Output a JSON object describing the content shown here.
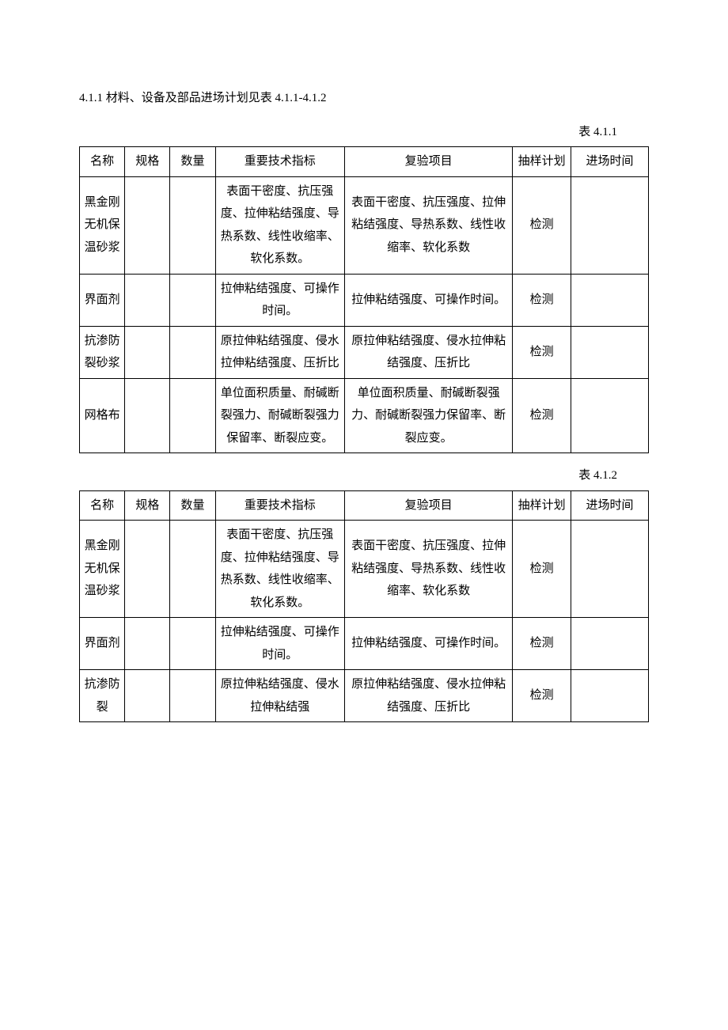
{
  "intro": "4.1.1 材料、设备及部品进场计划见表 4.1.1-4.1.2",
  "labels": {
    "table1": "表 4.1.1",
    "table2": "表 4.1.2"
  },
  "headers": {
    "name": "名称",
    "spec": "规格",
    "qty": "数量",
    "tech": "重要技术指标",
    "retest": "复验项目",
    "sample": "抽样计划",
    "time": "进场时间"
  },
  "table1": {
    "rows": [
      {
        "name": "黑金刚无机保温砂浆",
        "spec": "",
        "qty": "",
        "tech": "表面干密度、抗压强度、拉伸粘结强度、导热系数、线性收缩率、软化系数。",
        "retest": "表面干密度、抗压强度、拉伸粘结强度、导热系数、线性收缩率、软化系数",
        "sample": "检测",
        "time": ""
      },
      {
        "name": "界面剂",
        "spec": "",
        "qty": "",
        "tech": "拉伸粘结强度、可操作时间。",
        "retest": "拉伸粘结强度、可操作时间。",
        "sample": "检测",
        "time": ""
      },
      {
        "name": "抗渗防裂砂浆",
        "spec": "",
        "qty": "",
        "tech": "原拉伸粘结强度、侵水拉伸粘结强度、压折比",
        "retest": "原拉伸粘结强度、侵水拉伸粘结强度、压折比",
        "sample": "检测",
        "time": ""
      },
      {
        "name": "网格布",
        "spec": "",
        "qty": "",
        "tech": "单位面积质量、耐碱断裂强力、耐碱断裂强力保留率、断裂应变。",
        "retest": "单位面积质量、耐碱断裂强力、耐碱断裂强力保留率、断裂应变。",
        "sample": "检测",
        "time": ""
      }
    ]
  },
  "table2": {
    "rows": [
      {
        "name": "黑金刚无机保温砂浆",
        "spec": "",
        "qty": "",
        "tech": "表面干密度、抗压强度、拉伸粘结强度、导热系数、线性收缩率、软化系数。",
        "retest": "表面干密度、抗压强度、拉伸粘结强度、导热系数、线性收缩率、软化系数",
        "sample": "检测",
        "time": ""
      },
      {
        "name": "界面剂",
        "spec": "",
        "qty": "",
        "tech": "拉伸粘结强度、可操作时间。",
        "retest": "拉伸粘结强度、可操作时间。",
        "sample": "检测",
        "time": ""
      },
      {
        "name": "抗渗防裂",
        "spec": "",
        "qty": "",
        "tech": "原拉伸粘结强度、侵水拉伸粘结强",
        "retest": "原拉伸粘结强度、侵水拉伸粘结强度、压折比",
        "sample": "检测",
        "time": ""
      }
    ]
  },
  "style": {
    "font_family": "SimSun",
    "font_size_pt": 11,
    "text_color": "#000000",
    "background_color": "#ffffff",
    "border_color": "#000000",
    "line_height": 1.9
  }
}
